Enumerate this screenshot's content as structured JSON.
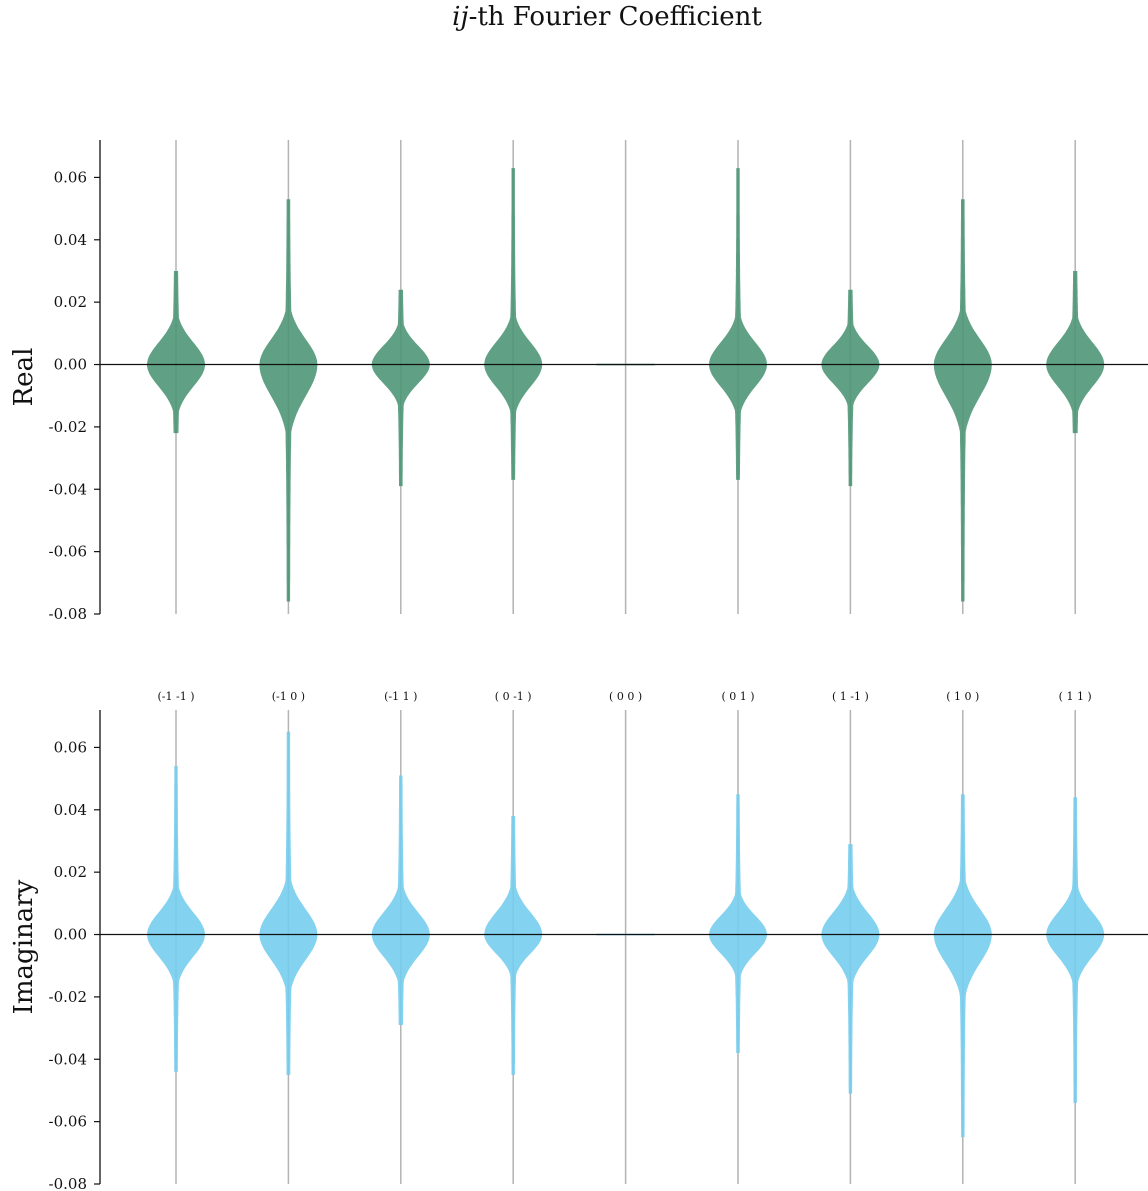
{
  "figure": {
    "title_var": "ij",
    "title_rest": "-th Fourier Coefficient"
  },
  "chart_data": [
    {
      "type": "violin",
      "ylabel": "Real",
      "color": "#4a9474",
      "ylim": [
        -0.08,
        0.072
      ],
      "yticks": [
        0.06,
        0.04,
        0.02,
        0.0,
        -0.02,
        -0.04,
        -0.06,
        -0.08
      ],
      "ytick_labels": [
        "0.06",
        "0.04",
        "0.02",
        "0.00",
        "-0.02",
        "-0.04",
        "-0.06",
        "-0.08"
      ],
      "category_labels_shown": false,
      "categories": [
        "(-1 -1 )",
        "(-1  0 )",
        "(-1  1 )",
        "( 0 -1 )",
        "( 0  0 )",
        "( 0  1 )",
        "( 1 -1 )",
        "( 1  0 )",
        "( 1  1 )"
      ],
      "series": [
        {
          "category": "(-1 -1 )",
          "min": -0.022,
          "max": 0.03,
          "spread": 0.0095,
          "upper_sigma": 0.007,
          "lower_sigma": 0.007
        },
        {
          "category": "(-1  0 )",
          "min": -0.076,
          "max": 0.053,
          "spread": 0.0095,
          "upper_sigma": 0.008,
          "lower_sigma": 0.01
        },
        {
          "category": "(-1  1 )",
          "min": -0.039,
          "max": 0.024,
          "spread": 0.0095,
          "upper_sigma": 0.006,
          "lower_sigma": 0.006
        },
        {
          "category": "( 0 -1 )",
          "min": -0.037,
          "max": 0.063,
          "spread": 0.0095,
          "upper_sigma": 0.007,
          "lower_sigma": 0.007
        },
        {
          "category": "( 0  0 )",
          "min": 0.0,
          "max": 0.0,
          "spread": 0.0095,
          "upper_sigma": 0.001,
          "lower_sigma": 0.001
        },
        {
          "category": "( 0  1 )",
          "min": -0.037,
          "max": 0.063,
          "spread": 0.0095,
          "upper_sigma": 0.007,
          "lower_sigma": 0.007
        },
        {
          "category": "( 1 -1 )",
          "min": -0.039,
          "max": 0.024,
          "spread": 0.0095,
          "upper_sigma": 0.006,
          "lower_sigma": 0.006
        },
        {
          "category": "( 1  0 )",
          "min": -0.076,
          "max": 0.053,
          "spread": 0.0095,
          "upper_sigma": 0.008,
          "lower_sigma": 0.01
        },
        {
          "category": "( 1  1 )",
          "min": -0.022,
          "max": 0.03,
          "spread": 0.0095,
          "upper_sigma": 0.007,
          "lower_sigma": 0.007
        }
      ]
    },
    {
      "type": "violin",
      "ylabel": "Imaginary",
      "color": "#72ccee",
      "ylim": [
        -0.08,
        0.072
      ],
      "yticks": [
        0.06,
        0.04,
        0.02,
        0.0,
        -0.02,
        -0.04,
        -0.06,
        -0.08
      ],
      "ytick_labels": [
        "0.06",
        "0.04",
        "0.02",
        "0.00",
        "-0.02",
        "-0.04",
        "-0.06",
        "-0.08"
      ],
      "category_labels_shown": true,
      "categories": [
        "(-1 -1 )",
        "(-1  0 )",
        "(-1  1 )",
        "( 0 -1 )",
        "( 0  0 )",
        "( 0  1 )",
        "( 1 -1 )",
        "( 1  0 )",
        "( 1  1 )"
      ],
      "series": [
        {
          "category": "(-1 -1 )",
          "min": -0.044,
          "max": 0.054,
          "spread": 0.0095,
          "upper_sigma": 0.007,
          "lower_sigma": 0.007
        },
        {
          "category": "(-1  0 )",
          "min": -0.045,
          "max": 0.065,
          "spread": 0.0095,
          "upper_sigma": 0.008,
          "lower_sigma": 0.008
        },
        {
          "category": "(-1  1 )",
          "min": -0.029,
          "max": 0.051,
          "spread": 0.0095,
          "upper_sigma": 0.007,
          "lower_sigma": 0.007
        },
        {
          "category": "( 0 -1 )",
          "min": -0.045,
          "max": 0.038,
          "spread": 0.0095,
          "upper_sigma": 0.007,
          "lower_sigma": 0.006
        },
        {
          "category": "( 0  0 )",
          "min": 0.0,
          "max": 0.0,
          "spread": 0.0095,
          "upper_sigma": 0.001,
          "lower_sigma": 0.001
        },
        {
          "category": "( 0  1 )",
          "min": -0.038,
          "max": 0.045,
          "spread": 0.0095,
          "upper_sigma": 0.006,
          "lower_sigma": 0.006
        },
        {
          "category": "( 1 -1 )",
          "min": -0.051,
          "max": 0.029,
          "spread": 0.0095,
          "upper_sigma": 0.007,
          "lower_sigma": 0.007
        },
        {
          "category": "( 1  0 )",
          "min": -0.065,
          "max": 0.045,
          "spread": 0.0095,
          "upper_sigma": 0.008,
          "lower_sigma": 0.009
        },
        {
          "category": "( 1  1 )",
          "min": -0.054,
          "max": 0.044,
          "spread": 0.0095,
          "upper_sigma": 0.007,
          "lower_sigma": 0.007
        }
      ]
    }
  ]
}
